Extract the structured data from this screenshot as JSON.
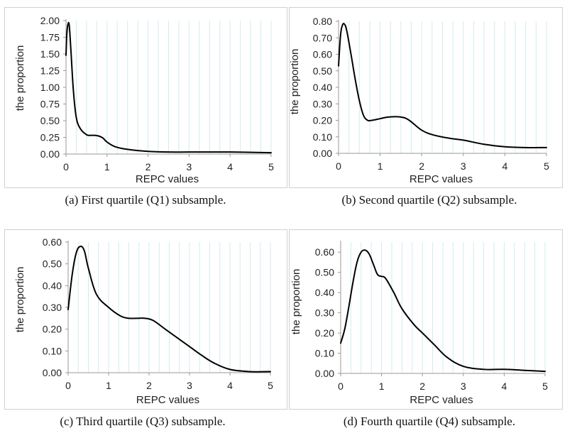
{
  "chart_data": [
    {
      "type": "line",
      "id": "q1",
      "caption": "(a) First quartile (Q1) subsample.",
      "xlabel": "REPC values",
      "ylabel": "the proportion",
      "xlim": [
        0,
        5
      ],
      "ylim": [
        0,
        2.0
      ],
      "xticks": [
        0,
        1,
        2,
        3,
        4,
        5
      ],
      "yticks": [
        "0.00",
        "0.25",
        "0.50",
        "0.75",
        "1.00",
        "1.25",
        "1.50",
        "1.75",
        "2.00"
      ],
      "x": [
        0,
        0.02,
        0.05,
        0.08,
        0.12,
        0.18,
        0.25,
        0.35,
        0.5,
        0.6,
        0.7,
        0.8,
        0.9,
        1.0,
        1.2,
        1.5,
        2.0,
        2.5,
        3.0,
        4.0,
        5.0
      ],
      "y": [
        1.48,
        1.8,
        1.95,
        1.92,
        1.55,
        0.95,
        0.55,
        0.38,
        0.29,
        0.28,
        0.28,
        0.27,
        0.24,
        0.18,
        0.11,
        0.07,
        0.04,
        0.03,
        0.03,
        0.03,
        0.02
      ]
    },
    {
      "type": "line",
      "id": "q2",
      "caption": "(b) Second quartile (Q2) subsample.",
      "xlabel": "REPC values",
      "ylabel": "the proportion",
      "xlim": [
        0,
        5
      ],
      "ylim": [
        0,
        0.8
      ],
      "xticks": [
        0,
        1,
        2,
        3,
        4,
        5
      ],
      "yticks": [
        "0.00",
        "0.10",
        "0.20",
        "0.30",
        "0.40",
        "0.50",
        "0.60",
        "0.70",
        "0.80"
      ],
      "x": [
        0,
        0.05,
        0.1,
        0.15,
        0.2,
        0.3,
        0.4,
        0.5,
        0.6,
        0.7,
        0.8,
        1.0,
        1.2,
        1.5,
        1.7,
        2.0,
        2.3,
        2.7,
        3.0,
        3.5,
        4.0,
        4.5,
        5.0
      ],
      "y": [
        0.53,
        0.72,
        0.78,
        0.78,
        0.74,
        0.6,
        0.45,
        0.32,
        0.23,
        0.2,
        0.2,
        0.21,
        0.22,
        0.22,
        0.2,
        0.14,
        0.11,
        0.09,
        0.08,
        0.055,
        0.04,
        0.035,
        0.035
      ]
    },
    {
      "type": "line",
      "id": "q3",
      "caption": "(c) Third quartile (Q3) subsample.",
      "xlabel": "REPC values",
      "ylabel": "the proportion",
      "xlim": [
        0,
        5
      ],
      "ylim": [
        0,
        0.6
      ],
      "xticks": [
        0,
        1,
        2,
        3,
        4,
        5
      ],
      "yticks": [
        "0.00",
        "0.10",
        "0.20",
        "0.30",
        "0.40",
        "0.50",
        "0.60"
      ],
      "x": [
        0,
        0.1,
        0.2,
        0.3,
        0.4,
        0.5,
        0.7,
        1.0,
        1.3,
        1.5,
        1.7,
        1.9,
        2.1,
        2.4,
        2.7,
        3.0,
        3.3,
        3.6,
        4.0,
        4.5,
        5.0
      ],
      "y": [
        0.29,
        0.45,
        0.55,
        0.58,
        0.56,
        0.48,
        0.36,
        0.3,
        0.26,
        0.25,
        0.25,
        0.25,
        0.24,
        0.2,
        0.16,
        0.12,
        0.08,
        0.045,
        0.015,
        0.005,
        0.005
      ]
    },
    {
      "type": "line",
      "id": "q4",
      "caption": "(d) Fourth quartile (Q4) subsample.",
      "xlabel": "REPC values",
      "ylabel": "the proportion",
      "xlim": [
        0,
        5
      ],
      "ylim": [
        0,
        0.65
      ],
      "xticks": [
        0,
        1,
        2,
        3,
        4,
        5
      ],
      "yticks": [
        "0.00",
        "0.10",
        "0.20",
        "0.30",
        "0.40",
        "0.50",
        "0.60"
      ],
      "x": [
        0,
        0.1,
        0.2,
        0.3,
        0.4,
        0.5,
        0.6,
        0.7,
        0.8,
        0.9,
        1.0,
        1.1,
        1.3,
        1.5,
        1.8,
        2.0,
        2.3,
        2.6,
        3.0,
        3.5,
        4.0,
        4.5,
        5.0
      ],
      "y": [
        0.15,
        0.22,
        0.33,
        0.45,
        0.55,
        0.6,
        0.61,
        0.59,
        0.54,
        0.49,
        0.48,
        0.47,
        0.4,
        0.32,
        0.24,
        0.2,
        0.14,
        0.08,
        0.035,
        0.02,
        0.02,
        0.015,
        0.01
      ]
    }
  ]
}
